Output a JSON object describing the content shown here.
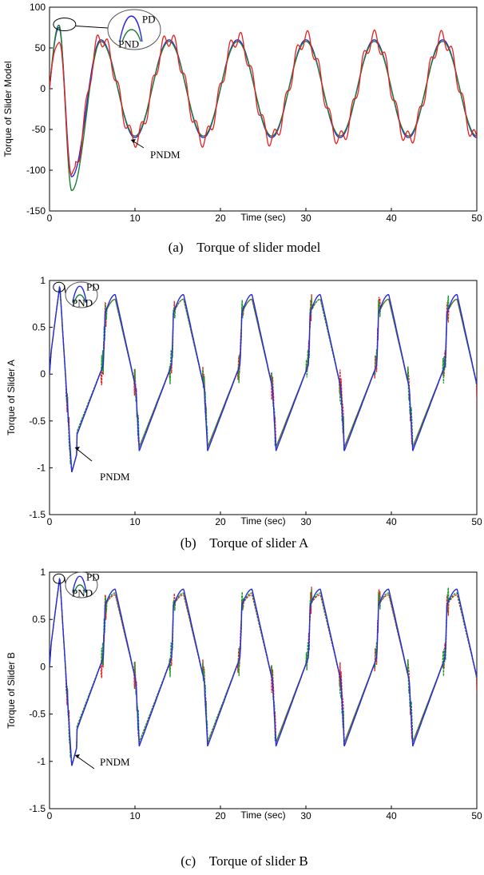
{
  "chart_data": [
    {
      "type": "line",
      "caption": "(a)    Torque of slider model",
      "xlabel": "Time (sec)",
      "ylabel": "Torque of Slider Model",
      "xlim": [
        0,
        50
      ],
      "ylim": [
        -150,
        100
      ],
      "xticks": [
        0,
        10,
        20,
        30,
        40,
        50
      ],
      "yticks": [
        -150,
        -100,
        -50,
        0,
        50,
        100
      ],
      "ytick_labels": [
        "-150",
        "-100",
        "-50",
        "0",
        "50",
        "100"
      ],
      "grid": false,
      "annotations": [
        "PD",
        "PND",
        "PNDM"
      ],
      "series": [
        {
          "name": "PD",
          "color": "#2a2adf",
          "peak_first": 75,
          "trough_first": -108,
          "amplitude": 60,
          "period": 8,
          "noise": 0
        },
        {
          "name": "PND",
          "color": "#1e7d33",
          "peak_first": 78,
          "trough_first": -125,
          "amplitude": 58,
          "period": 8,
          "noise": 0
        },
        {
          "name": "PNDM",
          "color": "#e8201e",
          "peak_first": 60,
          "trough_first": -105,
          "amplitude": 62,
          "period": 8,
          "noise": 10
        }
      ]
    },
    {
      "type": "line",
      "caption": "(b)    Torque of slider A",
      "xlabel": "Time (sec)",
      "ylabel": "Torque of Slider A",
      "xlim": [
        0,
        50
      ],
      "ylim": [
        -1.5,
        1
      ],
      "xticks": [
        0,
        10,
        20,
        30,
        40,
        50
      ],
      "yticks": [
        -1.5,
        -1,
        -0.5,
        0,
        0.5,
        1
      ],
      "ytick_labels": [
        "-1.5",
        "-1",
        "-0.5",
        "0",
        "0.5",
        "1"
      ],
      "grid": false,
      "annotations": [
        "PD",
        "PND",
        "PNDM"
      ],
      "series": [
        {
          "name": "PD",
          "color": "#2a2adf",
          "peak": 0.85,
          "trough": -0.82,
          "period": 8
        },
        {
          "name": "PND",
          "color": "#1e9a2a",
          "peak": 0.8,
          "trough": -0.78,
          "period": 8
        },
        {
          "name": "PNDM",
          "color": "#e8201e",
          "peak": 0.8,
          "trough": -0.78,
          "period": 8
        }
      ]
    },
    {
      "type": "line",
      "caption": "(c)    Torque of slider B",
      "xlabel": "Time (sec)",
      "ylabel": "Torque of Slider B",
      "xlim": [
        0,
        50
      ],
      "ylim": [
        -1.5,
        1
      ],
      "xticks": [
        0,
        10,
        20,
        30,
        40,
        50
      ],
      "yticks": [
        -1.5,
        -1,
        -0.5,
        0,
        0.5,
        1
      ],
      "ytick_labels": [
        "-1.5",
        "-1",
        "-0.5",
        "0",
        "0.5",
        "1"
      ],
      "grid": false,
      "annotations": [
        "PD",
        "PND",
        "PNDM"
      ],
      "series": [
        {
          "name": "PD",
          "color": "#2a2adf",
          "peak": 0.82,
          "trough": -0.84,
          "period": 8
        },
        {
          "name": "PND",
          "color": "#1e9a2a",
          "peak": 0.78,
          "trough": -0.8,
          "period": 8
        },
        {
          "name": "PNDM",
          "color": "#e8201e",
          "peak": 0.76,
          "trough": -0.8,
          "period": 8
        }
      ]
    }
  ]
}
